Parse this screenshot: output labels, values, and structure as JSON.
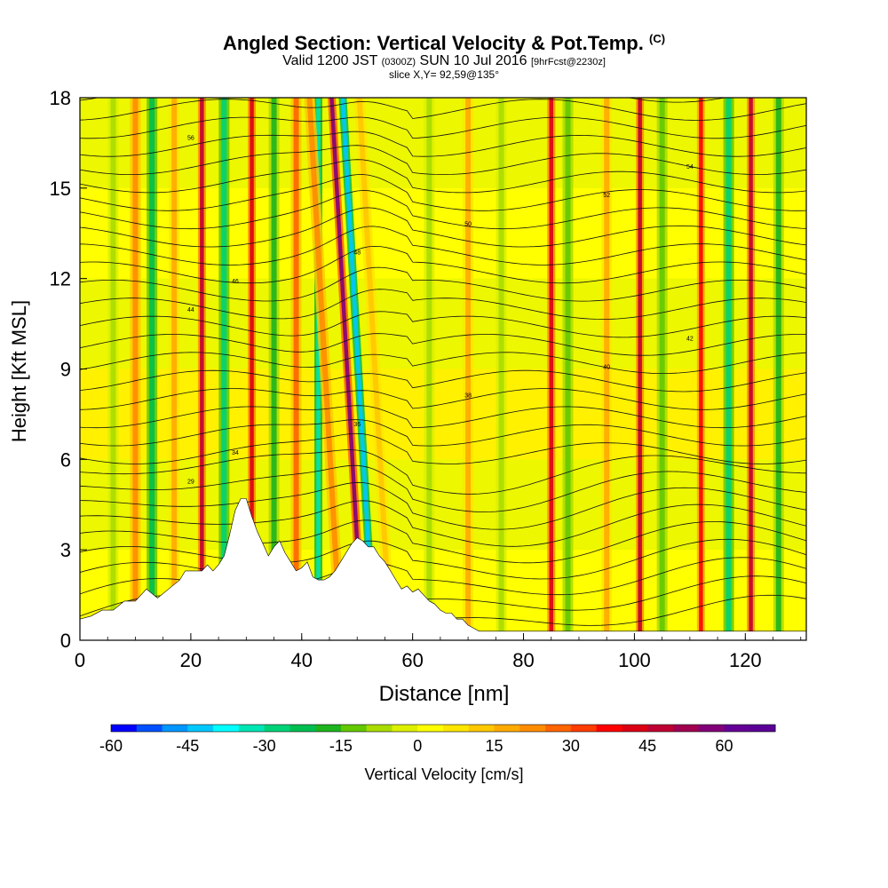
{
  "title": "Angled Section: Vertical Velocity & Pot.Temp.",
  "title_unit": "(C)",
  "subtitle_a": "Valid 1200 JST",
  "subtitle_b": "(0300Z)",
  "subtitle_c": "SUN 10 Jul 2016",
  "subtitle_d": "[9hrFcst@2230z]",
  "slice": "slice X,Y= 92,59@135°",
  "chart_data": {
    "type": "heatmap",
    "xlabel": "Distance [nm]",
    "ylabel": "Height [Kft MSL]",
    "xlim": [
      0,
      131
    ],
    "ylim": [
      0,
      18
    ],
    "x_ticks": [
      0,
      20,
      40,
      60,
      80,
      100,
      120
    ],
    "y_ticks": [
      0,
      3,
      6,
      9,
      12,
      15,
      18
    ],
    "colorbar": {
      "label": "Vertical Velocity [cm/s]",
      "min": -60,
      "max": 70,
      "step": 5,
      "tick_labels": [
        "-60",
        "-45",
        "-30",
        "-15",
        "0",
        "15",
        "30",
        "45",
        "60"
      ],
      "colors": [
        "#0000ff",
        "#0050ff",
        "#0096ff",
        "#00c8ff",
        "#00ffff",
        "#00e6b4",
        "#00d278",
        "#00be50",
        "#1eb41e",
        "#64c800",
        "#aadc00",
        "#dcf000",
        "#ffff00",
        "#ffe600",
        "#ffc800",
        "#ffaa00",
        "#ff8c00",
        "#ff6400",
        "#ff3c00",
        "#ff0000",
        "#dc0014",
        "#be0032",
        "#a00050",
        "#820078",
        "#640096",
        "#5a0096"
      ]
    },
    "velocity_streaks": [
      {
        "x": 6,
        "value": -10
      },
      {
        "x": 10,
        "value": 20
      },
      {
        "x": 13,
        "value": -25
      },
      {
        "x": 17,
        "value": 15
      },
      {
        "x": 22,
        "value": 45
      },
      {
        "x": 26,
        "value": -30
      },
      {
        "x": 31,
        "value": 40
      },
      {
        "x": 35,
        "value": -20
      },
      {
        "x": 39,
        "value": 25
      },
      {
        "x": 43,
        "value": -35
      },
      {
        "x": 47,
        "value": 20
      },
      {
        "x": 51,
        "value": 55
      },
      {
        "x": 53,
        "value": -45
      },
      {
        "x": 56,
        "value": 10
      },
      {
        "x": 63,
        "value": -10
      },
      {
        "x": 70,
        "value": 15
      },
      {
        "x": 76,
        "value": -10
      },
      {
        "x": 85,
        "value": 40
      },
      {
        "x": 88,
        "value": -15
      },
      {
        "x": 95,
        "value": 15
      },
      {
        "x": 101,
        "value": 45
      },
      {
        "x": 105,
        "value": -15
      },
      {
        "x": 112,
        "value": 35
      },
      {
        "x": 117,
        "value": -30
      },
      {
        "x": 121,
        "value": 45
      },
      {
        "x": 126,
        "value": -20
      }
    ],
    "terrain": [
      [
        0,
        0.7
      ],
      [
        2,
        0.8
      ],
      [
        4,
        1.0
      ],
      [
        6,
        1.0
      ],
      [
        8,
        1.3
      ],
      [
        10,
        1.3
      ],
      [
        12,
        1.7
      ],
      [
        14,
        1.4
      ],
      [
        16,
        1.7
      ],
      [
        18,
        2.0
      ],
      [
        19,
        2.3
      ],
      [
        22,
        2.3
      ],
      [
        23,
        2.5
      ],
      [
        24,
        2.3
      ],
      [
        25,
        2.5
      ],
      [
        26,
        2.8
      ],
      [
        27,
        3.5
      ],
      [
        28,
        4.3
      ],
      [
        29,
        4.7
      ],
      [
        30,
        4.7
      ],
      [
        31,
        4.1
      ],
      [
        32,
        3.6
      ],
      [
        33,
        3.2
      ],
      [
        34,
        2.8
      ],
      [
        35,
        3.1
      ],
      [
        36,
        3.3
      ],
      [
        37,
        2.9
      ],
      [
        38,
        2.6
      ],
      [
        39,
        2.3
      ],
      [
        40,
        2.4
      ],
      [
        41,
        2.6
      ],
      [
        42,
        2.1
      ],
      [
        43,
        2.0
      ],
      [
        44,
        2.0
      ],
      [
        45,
        2.1
      ],
      [
        46,
        2.3
      ],
      [
        47,
        2.6
      ],
      [
        48,
        2.9
      ],
      [
        49,
        3.2
      ],
      [
        50,
        3.4
      ],
      [
        51,
        3.3
      ],
      [
        52,
        3.1
      ],
      [
        53,
        3.1
      ],
      [
        54,
        2.8
      ],
      [
        55,
        2.6
      ],
      [
        56,
        2.3
      ],
      [
        57,
        2.0
      ],
      [
        58,
        1.7
      ],
      [
        59,
        1.8
      ],
      [
        60,
        1.6
      ],
      [
        61,
        1.7
      ],
      [
        62,
        1.5
      ],
      [
        63,
        1.3
      ],
      [
        64,
        1.2
      ],
      [
        65,
        1.0
      ],
      [
        66,
        0.9
      ],
      [
        67,
        0.9
      ],
      [
        68,
        0.7
      ],
      [
        69,
        0.7
      ],
      [
        70,
        0.5
      ],
      [
        71,
        0.4
      ],
      [
        72,
        0.3
      ],
      [
        80,
        0.3
      ],
      [
        90,
        0.3
      ],
      [
        100,
        0.3
      ],
      [
        110,
        0.3
      ],
      [
        120,
        0.3
      ],
      [
        131,
        0.3
      ]
    ],
    "theta_contours": {
      "label_values": [
        "29",
        "34",
        "36",
        "38",
        "40",
        "42",
        "44",
        "46",
        "48",
        "50",
        "52",
        "54",
        "56"
      ]
    }
  }
}
